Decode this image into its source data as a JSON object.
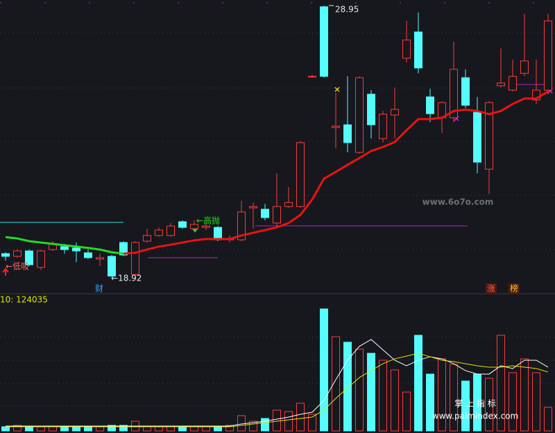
{
  "chart_data": {
    "type": "candlestick",
    "ylim": [
      18.4,
      29.15
    ],
    "up_color": "#ff3b3b",
    "down_color": "#54fcfc",
    "open": [
      19.78,
      19.68,
      19.88,
      19.27,
      19.93,
      20.04,
      19.99,
      19.81,
      19.58,
      19.68,
      20.19,
      19.01,
      20.24,
      20.45,
      20.45,
      20.96,
      20.7,
      20.75,
      20.75,
      20.29,
      20.29,
      21.47,
      21.42,
      20.91,
      21.52,
      21.52,
      26.31,
      28.9,
      24.44,
      24.54,
      23.52,
      25.67,
      24.03,
      24.9,
      27.0,
      27.97,
      25.57,
      24.8,
      24.8,
      26.28,
      25.0,
      22.9,
      25.98,
      25.82,
      26.44,
      25.46,
      25.82
    ],
    "close": [
      19.68,
      19.88,
      19.37,
      19.88,
      20.14,
      19.93,
      19.88,
      19.63,
      19.63,
      18.95,
      19.73,
      20.19,
      20.45,
      20.65,
      20.8,
      20.75,
      20.86,
      20.8,
      20.29,
      20.34,
      21.32,
      21.52,
      21.11,
      21.52,
      21.67,
      23.88,
      26.33,
      26.33,
      24.49,
      23.88,
      26.28,
      24.54,
      24.93,
      25.11,
      27.67,
      26.64,
      24.95,
      25.36,
      26.59,
      25.26,
      23.16,
      25.36,
      26.08,
      26.33,
      26.9,
      25.82,
      28.38
    ],
    "high": [
      19.83,
      19.93,
      19.93,
      19.93,
      20.24,
      20.14,
      20.19,
      19.93,
      19.78,
      19.73,
      20.24,
      20.24,
      20.7,
      20.75,
      20.91,
      21.01,
      21.01,
      20.96,
      20.8,
      20.45,
      21.73,
      21.67,
      21.62,
      22.75,
      22.24,
      23.93,
      26.39,
      28.95,
      25.72,
      26.33,
      26.33,
      25.82,
      25.05,
      25.92,
      28.38,
      28.69,
      25.87,
      25.41,
      27.61,
      26.59,
      25.57,
      25.41,
      27.36,
      26.95,
      28.64,
      26.95,
      28.64
    ],
    "low": [
      19.52,
      19.63,
      19.32,
      19.17,
      19.88,
      19.78,
      19.47,
      19.58,
      19.32,
      18.92,
      19.68,
      18.96,
      20.19,
      20.4,
      20.4,
      20.7,
      20.65,
      20.65,
      20.24,
      20.19,
      20.24,
      20.7,
      21.01,
      20.8,
      21.47,
      21.47,
      26.28,
      26.28,
      23.67,
      23.52,
      23.47,
      24.03,
      23.88,
      24.03,
      26.85,
      26.44,
      24.64,
      24.23,
      24.64,
      25.16,
      22.75,
      21.98,
      25.92,
      25.77,
      26.33,
      25.31,
      25.67
    ],
    "ma_lines": [
      {
        "color": "#22dd22",
        "values": [
          20.39,
          20.34,
          20.24,
          20.19,
          20.14,
          20.09,
          20.04,
          19.99,
          19.93,
          19.83,
          19.78,
          null,
          null,
          null,
          null,
          null,
          null,
          null,
          null,
          null,
          null,
          null,
          null,
          null,
          null,
          null,
          null,
          null,
          null,
          null,
          null,
          null,
          null,
          null,
          null,
          null,
          null,
          null,
          null,
          null,
          null,
          null,
          null,
          null,
          null,
          null,
          null
        ]
      },
      {
        "color": "#ee1111",
        "values": [
          null,
          null,
          null,
          null,
          null,
          null,
          null,
          null,
          null,
          null,
          19.78,
          19.81,
          19.93,
          20.04,
          20.11,
          20.19,
          20.27,
          20.32,
          20.32,
          20.32,
          20.45,
          20.55,
          20.65,
          20.75,
          20.91,
          21.21,
          21.78,
          22.55,
          22.8,
          23.06,
          23.31,
          23.57,
          23.72,
          23.9,
          24.34,
          24.75,
          24.75,
          24.8,
          25.05,
          25.1,
          25.05,
          24.93,
          25.05,
          25.31,
          25.51,
          25.51,
          25.77
        ]
      }
    ],
    "annotations": {
      "high_label": "28.95",
      "low_label": "←18.92",
      "buy_label": "←低吸",
      "sell_label": "←高抛",
      "finance_tag": "财",
      "tag_up": "涨",
      "tag_list": "榜"
    },
    "volume": {
      "label": "10: 124035",
      "ylim": [
        0,
        280000
      ],
      "values": [
        8750,
        11670,
        8750,
        8750,
        8750,
        8750,
        8750,
        8750,
        8750,
        11670,
        11670,
        20430,
        8750,
        8750,
        8750,
        8750,
        8750,
        8750,
        8750,
        11670,
        32100,
        20430,
        26260,
        43770,
        40850,
        58360,
        35020,
        256780,
        198420,
        186750,
        172160,
        163410,
        148820,
        128390,
        81700,
        201340,
        119640,
        151740,
        140060,
        105050,
        119640,
        110880,
        201340,
        122560,
        151740,
        122560,
        49610
      ],
      "ma_lines": [
        {
          "color": "#ffffff",
          "values": [
            10210,
            10210,
            10210,
            10210,
            10210,
            10210,
            10210,
            10210,
            10210,
            10210,
            10210,
            10210,
            10210,
            10210,
            10210,
            10210,
            10210,
            10210,
            10210,
            10210,
            14590,
            17510,
            20430,
            24800,
            29180,
            35020,
            39390,
            64200,
            107970,
            148820,
            178000,
            192590,
            170700,
            148820,
            137150,
            148820,
            156110,
            151740,
            141520,
            126930,
            119640,
            119640,
            137150,
            131310,
            148820,
            148820,
            134230
          ]
        },
        {
          "color": "#e5e500",
          "values": [
            8750,
            8750,
            8750,
            8750,
            8750,
            8750,
            8750,
            8750,
            8750,
            8750,
            8750,
            8750,
            8750,
            8750,
            8750,
            8750,
            8750,
            8750,
            8750,
            8750,
            11670,
            14590,
            17510,
            20430,
            23340,
            26260,
            29180,
            43770,
            68570,
            90460,
            112340,
            126930,
            141520,
            151740,
            157570,
            163410,
            156110,
            148820,
            145900,
            141520,
            137150,
            134230,
            134230,
            137150,
            134230,
            131310,
            124035
          ]
        }
      ]
    }
  },
  "watermarks": {
    "site_a": "www.6o7o.com",
    "brand": "掌 上 指 标",
    "site_b": "www.palmindex.com"
  }
}
